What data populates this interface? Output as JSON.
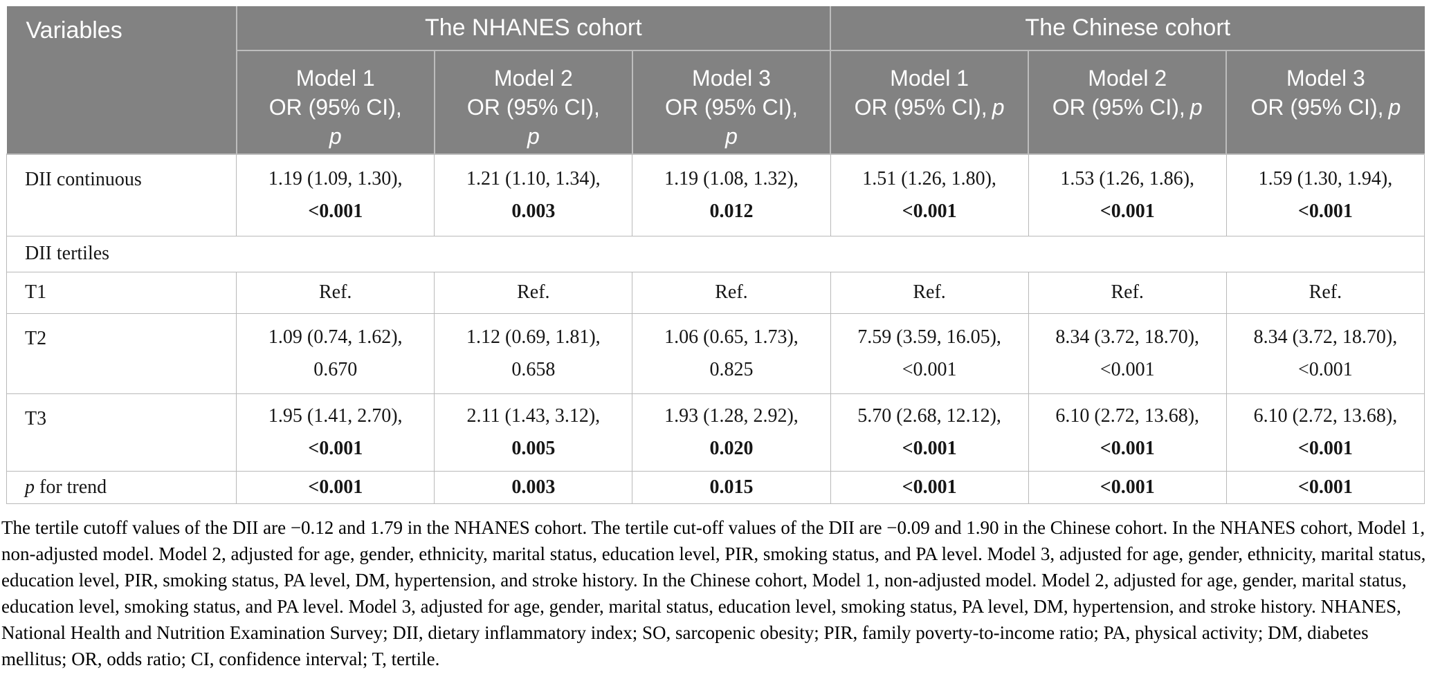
{
  "table": {
    "header": {
      "variables_label": "Variables",
      "nhanes_label": "The NHANES cohort",
      "chinese_label": "The Chinese cohort",
      "model_columns": [
        {
          "model": "Model 1",
          "or_label": "OR (95% CI),",
          "p_label": "p"
        },
        {
          "model": "Model 2",
          "or_label": "OR (95% CI),",
          "p_label": "p"
        },
        {
          "model": "Model 3",
          "or_label": "OR (95% CI),",
          "p_label": "p"
        },
        {
          "model": "Model 1",
          "or_label": "OR (95% CI),",
          "p_label": "p"
        },
        {
          "model": "Model 2",
          "or_label": "OR (95% CI),",
          "p_label": "p"
        },
        {
          "model": "Model 3",
          "or_label": "OR (95% CI),",
          "p_label": "p"
        }
      ]
    },
    "rows": {
      "dii_continuous": {
        "label": "DII continuous",
        "cells": [
          {
            "estimate": "1.19 (1.09, 1.30),",
            "p": "<0.001"
          },
          {
            "estimate": "1.21 (1.10, 1.34),",
            "p": "0.003"
          },
          {
            "estimate": "1.19 (1.08, 1.32),",
            "p": "0.012"
          },
          {
            "estimate": "1.51 (1.26, 1.80),",
            "p": "<0.001"
          },
          {
            "estimate": "1.53 (1.26, 1.86),",
            "p": "<0.001"
          },
          {
            "estimate": "1.59 (1.30, 1.94),",
            "p": "<0.001"
          }
        ]
      },
      "dii_tertiles": {
        "label": "DII tertiles"
      },
      "t1": {
        "label": "T1",
        "cells": [
          "Ref.",
          "Ref.",
          "Ref.",
          "Ref.",
          "Ref.",
          "Ref."
        ]
      },
      "t2": {
        "label": "T2",
        "cells": [
          {
            "estimate": "1.09 (0.74, 1.62),",
            "p": "0.670"
          },
          {
            "estimate": "1.12 (0.69, 1.81),",
            "p": "0.658"
          },
          {
            "estimate": "1.06 (0.65, 1.73),",
            "p": "0.825"
          },
          {
            "estimate": "7.59 (3.59, 16.05),",
            "p": "<0.001"
          },
          {
            "estimate": "8.34 (3.72, 18.70),",
            "p": "<0.001"
          },
          {
            "estimate": "8.34 (3.72, 18.70),",
            "p": "<0.001"
          }
        ]
      },
      "t3": {
        "label": "T3",
        "cells": [
          {
            "estimate": "1.95 (1.41, 2.70),",
            "p": "<0.001"
          },
          {
            "estimate": "2.11 (1.43, 3.12),",
            "p": "0.005"
          },
          {
            "estimate": "1.93 (1.28, 2.92),",
            "p": "0.020"
          },
          {
            "estimate": "5.70 (2.68, 12.12),",
            "p": "<0.001"
          },
          {
            "estimate": "6.10 (2.72, 13.68),",
            "p": "<0.001"
          },
          {
            "estimate": "6.10 (2.72, 13.68),",
            "p": "<0.001"
          }
        ]
      },
      "p_for_trend": {
        "label_p": "p",
        "label_rest": " for trend",
        "cells": [
          "<0.001",
          "0.003",
          "0.015",
          "<0.001",
          "<0.001",
          "<0.001"
        ]
      }
    },
    "footnote": "The tertile cutoff values of the DII are −0.12 and 1.79 in the NHANES cohort. The tertile cut-off values of the DII are −0.09 and 1.90 in the Chinese cohort. In the NHANES cohort, Model 1, non-adjusted model. Model 2, adjusted for age, gender, ethnicity, marital status, education level, PIR, smoking status, and PA level. Model 3, adjusted for age, gender, ethnicity, marital status, education level, PIR, smoking status, PA level, DM, hypertension, and stroke history. In the Chinese cohort, Model 1, non-adjusted model. Model 2, adjusted for age, gender, marital status, education level, smoking status, and PA level. Model 3, adjusted for age, gender, marital status, education level, smoking status, PA level, DM, hypertension, and stroke history. NHANES, National Health and Nutrition Examination Survey; DII, dietary inflammatory index; SO, sarcopenic obesity; PIR, family poverty-to-income ratio; PA, physical activity; DM, diabetes mellitus; OR, odds ratio; CI, confidence interval; T, tertile."
  },
  "colors": {
    "header_bg": "#828282",
    "header_text": "#ffffff",
    "body_border": "#b9b9b9",
    "body_text": "#161616"
  }
}
